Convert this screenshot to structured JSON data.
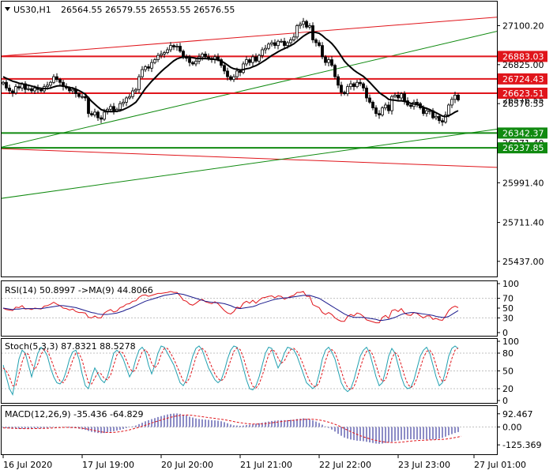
{
  "chart_data": {
    "type": "candlestick",
    "symbol": "US30,H1",
    "ohlc_header": [
      "26564.55",
      "26579.55",
      "26553.55",
      "26576.55"
    ],
    "price_axis": {
      "ylim": [
        25330,
        27270
      ],
      "ticks": [
        27100.2,
        26825.0,
        26550.0,
        25991.4,
        25711.4,
        25437.0
      ],
      "tick_labels": [
        "27100.20",
        "26825.00",
        "26576.55",
        "25991.40",
        "25711.40",
        "25437.00"
      ],
      "hidden_tick_labels": [
        "26271.40"
      ]
    },
    "current_price_label": "26576.55",
    "levels": [
      {
        "value": 26883.03,
        "label": "26883.03",
        "color": "#e0151b"
      },
      {
        "value": 26724.43,
        "label": "26724.43",
        "color": "#e0151b"
      },
      {
        "value": 26623.51,
        "label": "26623.51",
        "color": "#e0151b"
      },
      {
        "value": 26342.37,
        "label": "26342.37",
        "color": "#108a10"
      },
      {
        "value": 26237.85,
        "label": "26237.85",
        "color": "#108a10"
      }
    ],
    "trendlines": [
      {
        "color": "#e0151b",
        "y_start": 26885,
        "y_end": 27160
      },
      {
        "color": "#e0151b",
        "y_start": 26232,
        "y_end": 26100
      },
      {
        "color": "#108a10",
        "y_start": 26240,
        "y_end": 27060
      },
      {
        "color": "#108a10",
        "y_start": 25880,
        "y_end": 26370
      }
    ],
    "closes": [
      26700,
      26660,
      26640,
      26625,
      26670,
      26660,
      26690,
      26650,
      26655,
      26640,
      26660,
      26650,
      26640,
      26670,
      26680,
      26700,
      26740,
      26720,
      26700,
      26670,
      26660,
      26640,
      26650,
      26620,
      26600,
      26600,
      26590,
      26480,
      26470,
      26490,
      26450,
      26440,
      26490,
      26510,
      26530,
      26500,
      26510,
      26550,
      26560,
      26590,
      26600,
      26640,
      26650,
      26740,
      26790,
      26810,
      26800,
      26840,
      26860,
      26890,
      26900,
      26910,
      26930,
      26960,
      26950,
      26955,
      26920,
      26880,
      26870,
      26840,
      26830,
      26850,
      26880,
      26900,
      26880,
      26870,
      26860,
      26880,
      26860,
      26820,
      26780,
      26740,
      26720,
      26740,
      26780,
      26770,
      26830,
      26860,
      26840,
      26880,
      26850,
      26890,
      26930,
      26940,
      26970,
      26980,
      26960,
      26990,
      26990,
      26960,
      26980,
      27000,
      27020,
      27100,
      27110,
      27130,
      27090,
      27100,
      27000,
      26980,
      26960,
      26880,
      26840,
      26860,
      26820,
      26740,
      26680,
      26630,
      26620,
      26670,
      26690,
      26670,
      26700,
      26690,
      26660,
      26590,
      26560,
      26520,
      26480,
      26470,
      26520,
      26540,
      26500,
      26600,
      26610,
      26590,
      26620,
      26570,
      26540,
      26530,
      26560,
      26550,
      26520,
      26480,
      26500,
      26500,
      26450,
      26460,
      26430,
      26420,
      26470,
      26540,
      26580,
      26610,
      26576
    ],
    "ma_overlay": [
      26740,
      26728,
      26718,
      26708,
      26702,
      26694,
      26690,
      26684,
      26680,
      26674,
      26668,
      26662,
      26658,
      26656,
      26656,
      26660,
      26668,
      26674,
      26676,
      26674,
      26670,
      26664,
      26660,
      26652,
      26642,
      26630,
      26616,
      26590,
      26566,
      26546,
      26526,
      26508,
      26500,
      26496,
      26494,
      26494,
      26496,
      26500,
      26508,
      26518,
      26530,
      26544,
      26560,
      26590,
      26624,
      26656,
      26682,
      26708,
      26730,
      26754,
      26776,
      26796,
      26814,
      26834,
      26852,
      26866,
      26874,
      26878,
      26880,
      26878,
      26874,
      26870,
      26868,
      26868,
      26868,
      26866,
      26864,
      26862,
      26858,
      26850,
      26838,
      26822,
      26806,
      26796,
      26792,
      26788,
      26790,
      26796,
      26800,
      26810,
      26818,
      26830,
      26844,
      26858,
      26874,
      26890,
      26902,
      26916,
      26928,
      26938,
      26948,
      26960,
      26972,
      26990,
      27008,
      27026,
      27040,
      27052,
      27054,
      27052,
      27046,
      27030,
      27010,
      26994,
      26974,
      26948,
      26918,
      26884,
      26850,
      26826,
      26806,
      26786,
      26770,
      26756,
      26742,
      26722,
      26700,
      26676,
      26652,
      26628,
      26612,
      26598,
      26580,
      26576,
      26574,
      26570,
      26570,
      26566,
      26560,
      26552,
      26548,
      26544,
      26536,
      26524,
      26516,
      26508,
      26496,
      26486,
      26474,
      26462,
      26458,
      26464,
      26476,
      26490,
      26500
    ],
    "rsi": {
      "label": "RSI(14) 50.8997  ->MA(9) 44.8066",
      "ylim": [
        0,
        100
      ],
      "levels": [
        30,
        70
      ],
      "tick_labels": [
        "100",
        "70",
        "50",
        "30",
        "0"
      ],
      "values": [
        50,
        47,
        46,
        45,
        52,
        51,
        55,
        48,
        49,
        47,
        50,
        49,
        48,
        54,
        55,
        58,
        62,
        58,
        55,
        50,
        49,
        46,
        48,
        43,
        41,
        41,
        40,
        31,
        30,
        34,
        30,
        30,
        40,
        44,
        47,
        42,
        44,
        51,
        53,
        58,
        59,
        64,
        65,
        72,
        76,
        77,
        74,
        76,
        78,
        80,
        80,
        81,
        82,
        84,
        82,
        82,
        75,
        66,
        64,
        58,
        56,
        60,
        65,
        68,
        63,
        61,
        59,
        63,
        59,
        52,
        45,
        40,
        38,
        43,
        52,
        50,
        60,
        64,
        60,
        66,
        60,
        66,
        71,
        72,
        74,
        75,
        71,
        75,
        74,
        68,
        71,
        74,
        76,
        82,
        82,
        84,
        74,
        74,
        57,
        54,
        51,
        41,
        37,
        41,
        37,
        30,
        26,
        23,
        23,
        33,
        37,
        34,
        40,
        38,
        33,
        26,
        24,
        22,
        20,
        20,
        31,
        35,
        29,
        45,
        47,
        43,
        49,
        40,
        36,
        35,
        41,
        39,
        34,
        30,
        34,
        34,
        27,
        29,
        26,
        25,
        34,
        45,
        51,
        54,
        51
      ],
      "ma": [
        50,
        49,
        48,
        47,
        48,
        48,
        49,
        49,
        49,
        49,
        49,
        49,
        49,
        50,
        51,
        52,
        53,
        54,
        55,
        55,
        54,
        53,
        52,
        51,
        49,
        47,
        45,
        43,
        41,
        40,
        38,
        37,
        37,
        37,
        38,
        39,
        40,
        42,
        44,
        47,
        49,
        52,
        55,
        58,
        61,
        64,
        66,
        68,
        70,
        72,
        74,
        76,
        77,
        78,
        79,
        80,
        79,
        78,
        76,
        74,
        72,
        70,
        68,
        66,
        64,
        63,
        62,
        61,
        61,
        60,
        59,
        57,
        55,
        52,
        50,
        49,
        50,
        51,
        52,
        53,
        55,
        58,
        60,
        62,
        64,
        66,
        68,
        69,
        70,
        71,
        71,
        72,
        73,
        74,
        75,
        76,
        76,
        76,
        74,
        72,
        70,
        66,
        62,
        58,
        54,
        50,
        46,
        42,
        38,
        35,
        33,
        31,
        31,
        31,
        31,
        30,
        29,
        28,
        27,
        25,
        25,
        26,
        27,
        29,
        31,
        34,
        37,
        39,
        40,
        41,
        41,
        40,
        39,
        38,
        37,
        36,
        35,
        33,
        32,
        31,
        31,
        33,
        37,
        41,
        44.8
      ]
    },
    "stoch": {
      "label": "Stoch(5,3,3) 87.8321 88.5278",
      "ylim": [
        0,
        100
      ],
      "levels": [
        20,
        50,
        80
      ],
      "tick_labels": [
        "100",
        "80",
        "50",
        "20",
        "0"
      ],
      "k": [
        60,
        40,
        20,
        10,
        40,
        70,
        85,
        80,
        60,
        40,
        60,
        80,
        90,
        85,
        75,
        55,
        40,
        30,
        28,
        35,
        50,
        70,
        82,
        85,
        70,
        45,
        25,
        20,
        40,
        55,
        45,
        35,
        30,
        40,
        60,
        80,
        85,
        80,
        70,
        55,
        40,
        50,
        70,
        85,
        90,
        82,
        60,
        45,
        60,
        80,
        92,
        90,
        80,
        70,
        60,
        45,
        30,
        25,
        35,
        55,
        75,
        88,
        92,
        85,
        70,
        55,
        45,
        35,
        30,
        35,
        50,
        70,
        85,
        92,
        90,
        75,
        55,
        35,
        20,
        18,
        25,
        40,
        60,
        80,
        90,
        88,
        70,
        55,
        65,
        80,
        90,
        88,
        85,
        75,
        60,
        45,
        30,
        25,
        20,
        25,
        45,
        70,
        85,
        90,
        82,
        70,
        50,
        30,
        20,
        15,
        20,
        35,
        55,
        75,
        85,
        90,
        80,
        60,
        40,
        25,
        30,
        50,
        75,
        88,
        80,
        60,
        40,
        25,
        20,
        22,
        35,
        55,
        75,
        85,
        90,
        80,
        60,
        40,
        25,
        30,
        50,
        75,
        88,
        92,
        87.8
      ],
      "d": [
        55,
        50,
        40,
        25,
        25,
        45,
        65,
        80,
        78,
        62,
        52,
        62,
        78,
        86,
        84,
        72,
        57,
        42,
        33,
        30,
        38,
        52,
        68,
        80,
        80,
        68,
        48,
        30,
        28,
        38,
        47,
        45,
        37,
        35,
        43,
        60,
        77,
        83,
        80,
        68,
        55,
        48,
        53,
        68,
        82,
        86,
        79,
        63,
        55,
        62,
        78,
        88,
        88,
        80,
        70,
        58,
        45,
        33,
        30,
        38,
        55,
        73,
        85,
        88,
        83,
        70,
        57,
        45,
        37,
        33,
        38,
        52,
        68,
        83,
        89,
        86,
        73,
        55,
        37,
        24,
        21,
        28,
        42,
        60,
        77,
        86,
        83,
        72,
        63,
        67,
        78,
        86,
        88,
        83,
        73,
        60,
        45,
        33,
        25,
        23,
        30,
        47,
        67,
        82,
        86,
        81,
        67,
        50,
        33,
        22,
        18,
        23,
        37,
        55,
        72,
        83,
        85,
        77,
        60,
        42,
        32,
        35,
        52,
        71,
        81,
        76,
        60,
        42,
        28,
        22,
        26,
        38,
        55,
        72,
        83,
        85,
        77,
        60,
        42,
        32,
        35,
        52,
        71,
        85,
        88.5
      ]
    },
    "macd": {
      "label": "MACD(12,26,9) -35.436 -64.829",
      "ylim": [
        -180,
        130
      ],
      "tick_labels": [
        "92.467",
        "0.00",
        "-125.369"
      ],
      "tick_values": [
        92.467,
        0,
        -125.369
      ],
      "histogram": [
        -5,
        -8,
        -10,
        -12,
        -12,
        -13,
        -12,
        -12,
        -11,
        -11,
        -10,
        -10,
        -9,
        -8,
        -6,
        -4,
        -2,
        -1,
        -1,
        -2,
        -3,
        -4,
        -5,
        -8,
        -12,
        -16,
        -20,
        -28,
        -34,
        -38,
        -42,
        -44,
        -42,
        -38,
        -34,
        -30,
        -26,
        -20,
        -14,
        -8,
        -2,
        4,
        10,
        20,
        30,
        40,
        48,
        55,
        62,
        70,
        76,
        82,
        88,
        92,
        94,
        95,
        92,
        86,
        80,
        72,
        66,
        60,
        56,
        54,
        52,
        50,
        48,
        46,
        44,
        40,
        34,
        26,
        18,
        12,
        10,
        8,
        10,
        14,
        16,
        20,
        22,
        26,
        30,
        34,
        38,
        42,
        44,
        46,
        48,
        48,
        48,
        50,
        52,
        56,
        58,
        60,
        58,
        54,
        46,
        38,
        28,
        16,
        4,
        -6,
        -18,
        -32,
        -48,
        -62,
        -74,
        -82,
        -88,
        -92,
        -96,
        -98,
        -100,
        -104,
        -108,
        -112,
        -116,
        -118,
        -116,
        -112,
        -110,
        -104,
        -98,
        -94,
        -90,
        -88,
        -86,
        -86,
        -86,
        -88,
        -86,
        -86,
        -88,
        -88,
        -88,
        -86,
        -82,
        -76,
        -68,
        -58,
        -50,
        -42,
        -35.4
      ],
      "signal": [
        -6,
        -7,
        -8,
        -9,
        -10,
        -11,
        -11,
        -12,
        -12,
        -12,
        -11,
        -11,
        -10,
        -10,
        -9,
        -8,
        -7,
        -5,
        -4,
        -3,
        -3,
        -3,
        -4,
        -5,
        -7,
        -9,
        -12,
        -16,
        -20,
        -25,
        -30,
        -34,
        -37,
        -39,
        -39,
        -38,
        -36,
        -33,
        -29,
        -25,
        -20,
        -14,
        -8,
        -2,
        5,
        12,
        20,
        28,
        35,
        42,
        49,
        56,
        62,
        68,
        73,
        78,
        81,
        83,
        84,
        83,
        81,
        78,
        75,
        72,
        69,
        66,
        63,
        60,
        57,
        54,
        51,
        47,
        43,
        38,
        34,
        30,
        27,
        24,
        22,
        21,
        21,
        21,
        22,
        24,
        26,
        29,
        32,
        35,
        38,
        41,
        43,
        45,
        47,
        49,
        51,
        53,
        54,
        55,
        54,
        52,
        49,
        45,
        40,
        34,
        27,
        19,
        10,
        0,
        -11,
        -22,
        -33,
        -43,
        -52,
        -61,
        -69,
        -76,
        -83,
        -89,
        -94,
        -99,
        -103,
        -106,
        -108,
        -109,
        -109,
        -108,
        -106,
        -104,
        -101,
        -99,
        -97,
        -95,
        -94,
        -93,
        -92,
        -91,
        -90,
        -89,
        -88,
        -87,
        -85,
        -82,
        -78,
        -74,
        -70,
        -64.8
      ]
    },
    "x_labels": [
      "16 Jul 2020",
      "17 Jul 19:00",
      "20 Jul 20:00",
      "21 Jul 21:00",
      "22 Jul 22:00",
      "23 Jul 23:00",
      "27 Jul 01:00"
    ],
    "x_label_positions": [
      0,
      25,
      50,
      75,
      100,
      125,
      149
    ],
    "colors": {
      "candle": "#000000",
      "ma": "#000000",
      "rsi_main": "#e0151b",
      "rsi_ma": "#1a1a8c",
      "stoch_k": "#20a0b0",
      "stoch_d": "#e0151b",
      "macd_hist": "#1a1a8c",
      "macd_signal": "#e0151b",
      "grid": "#c0c0c0"
    }
  }
}
